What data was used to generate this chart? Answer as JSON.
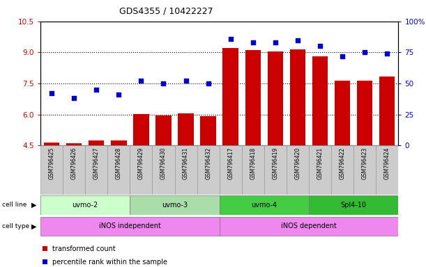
{
  "title": "GDS4355 / 10422227",
  "samples": [
    "GSM796425",
    "GSM796426",
    "GSM796427",
    "GSM796428",
    "GSM796429",
    "GSM796430",
    "GSM796431",
    "GSM796432",
    "GSM796417",
    "GSM796418",
    "GSM796419",
    "GSM796420",
    "GSM796421",
    "GSM796422",
    "GSM796423",
    "GSM796424"
  ],
  "transformed_count": [
    4.65,
    4.6,
    4.75,
    4.75,
    6.02,
    5.95,
    6.05,
    5.92,
    9.2,
    9.1,
    9.05,
    9.15,
    8.82,
    7.62,
    7.65,
    7.82
  ],
  "percentile_rank": [
    42,
    38,
    45,
    41,
    52,
    50,
    52,
    50,
    86,
    83,
    83,
    85,
    80,
    72,
    75,
    74
  ],
  "cell_lines": [
    {
      "label": "uvmo-2",
      "start": 0,
      "end": 3,
      "color": "#ccffcc"
    },
    {
      "label": "uvmo-3",
      "start": 4,
      "end": 7,
      "color": "#aaddaa"
    },
    {
      "label": "uvmo-4",
      "start": 8,
      "end": 11,
      "color": "#44cc44"
    },
    {
      "label": "Spl4-10",
      "start": 12,
      "end": 15,
      "color": "#33bb33"
    }
  ],
  "cell_types": [
    {
      "label": "iNOS independent",
      "start": 0,
      "end": 7,
      "color": "#ee88ee"
    },
    {
      "label": "iNOS dependent",
      "start": 8,
      "end": 15,
      "color": "#ee88ee"
    }
  ],
  "ylim_left": [
    4.5,
    10.5
  ],
  "ylim_right": [
    0,
    100
  ],
  "yticks_left": [
    4.5,
    6.0,
    7.5,
    9.0,
    10.5
  ],
  "yticks_right": [
    0,
    25,
    50,
    75,
    100
  ],
  "bar_color": "#cc0000",
  "dot_color": "#0000cc",
  "grid_color": "#000000",
  "label_color_left": "#cc0000",
  "label_color_right": "#0000cc",
  "sample_box_color": "#cccccc",
  "sample_box_edge": "#999999"
}
